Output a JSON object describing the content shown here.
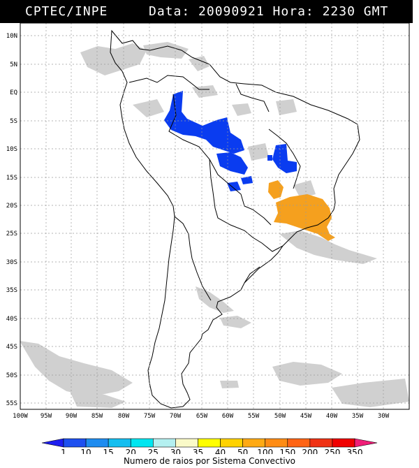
{
  "header": {
    "organization": "CPTEC/INPE",
    "datetime": "Data: 20090921 Hora: 2230 GMT"
  },
  "map": {
    "lat_labels": [
      "10N",
      "5N",
      "EQ",
      "5S",
      "10S",
      "15S",
      "20S",
      "25S",
      "30S",
      "35S",
      "40S",
      "45S",
      "50S",
      "55S"
    ],
    "lon_labels": [
      "100W",
      "95W",
      "90W",
      "85W",
      "80W",
      "75W",
      "70W",
      "65W",
      "60W",
      "55W",
      "50W",
      "45W",
      "40W",
      "35W",
      "30W"
    ],
    "colors": {
      "cloud": "#c8c8c8",
      "low_count": "#0a3cf0",
      "high_count": "#f5a01e",
      "grid": "#9a9a9a",
      "coast": "#000000"
    }
  },
  "colorbar": {
    "ticks": [
      "1",
      "10",
      "15",
      "20",
      "25",
      "30",
      "35",
      "40",
      "50",
      "100",
      "150",
      "200",
      "250",
      "350"
    ],
    "colors": [
      "#1e1ef0",
      "#1e50f0",
      "#1e8cf0",
      "#14bef0",
      "#00e6f0",
      "#b4f0f0",
      "#fafac8",
      "#ffff00",
      "#ffd200",
      "#ffaa14",
      "#ff8c14",
      "#ff6414",
      "#f03214",
      "#f00000",
      "#f01e78"
    ],
    "title": "Numero de raios por Sistema Convectivo"
  }
}
